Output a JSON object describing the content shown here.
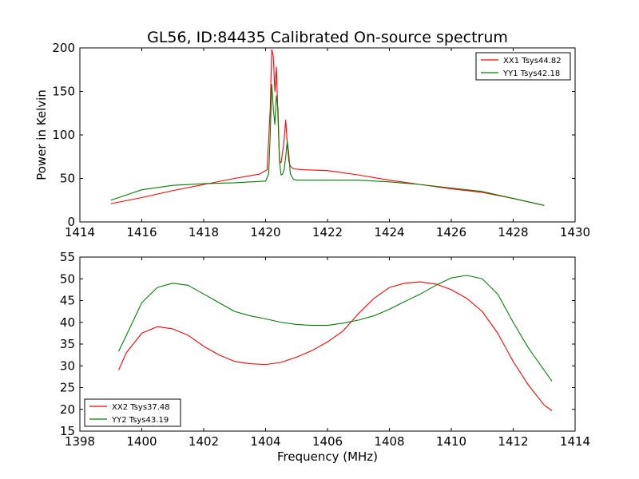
{
  "figure": {
    "title": "GL56, ID:84435 Calibrated On-source spectrum"
  },
  "chart_data": [
    {
      "type": "line",
      "title": "GL56, ID:84435 Calibrated On-source spectrum",
      "xlabel": "",
      "ylabel": "Power in Kelvin",
      "xlim": [
        1414,
        1430
      ],
      "ylim": [
        0,
        200
      ],
      "xticks": [
        1414,
        1416,
        1418,
        1420,
        1422,
        1424,
        1426,
        1428,
        1430
      ],
      "yticks": [
        0,
        50,
        100,
        150,
        200
      ],
      "grid": false,
      "legend_position": "top-right",
      "series": [
        {
          "name": "XX1 Tsys44.82",
          "color": "#ff0000",
          "x": [
            1415.0,
            1416.0,
            1417.0,
            1418.0,
            1419.0,
            1419.8,
            1420.05,
            1420.15,
            1420.2,
            1420.25,
            1420.3,
            1420.35,
            1420.4,
            1420.45,
            1420.5,
            1420.55,
            1420.6,
            1420.65,
            1420.7,
            1420.75,
            1420.8,
            1420.9,
            1421.2,
            1422.0,
            1423.0,
            1424.0,
            1425.0,
            1426.0,
            1427.0,
            1428.0,
            1429.0
          ],
          "y": [
            21,
            28,
            36,
            43,
            50,
            55,
            60,
            130,
            198,
            190,
            150,
            178,
            120,
            70,
            68,
            80,
            95,
            117,
            90,
            70,
            64,
            61,
            60,
            59,
            54,
            48,
            43,
            38,
            34,
            27,
            19
          ]
        },
        {
          "name": "YY1 Tsys42.18",
          "color": "#008000",
          "x": [
            1415.0,
            1415.5,
            1416.0,
            1417.0,
            1418.0,
            1419.0,
            1420.0,
            1420.1,
            1420.15,
            1420.2,
            1420.25,
            1420.3,
            1420.35,
            1420.4,
            1420.45,
            1420.5,
            1420.55,
            1420.6,
            1420.65,
            1420.7,
            1420.75,
            1420.8,
            1420.9,
            1421.0,
            1422.0,
            1423.0,
            1424.0,
            1425.0,
            1426.0,
            1427.0,
            1428.0,
            1429.0
          ],
          "y": [
            25,
            31,
            37,
            42,
            44,
            45,
            47,
            55,
            100,
            158,
            130,
            112,
            145,
            130,
            70,
            54,
            55,
            60,
            75,
            93,
            78,
            55,
            49,
            48,
            48,
            48,
            46,
            43,
            39,
            35,
            27,
            19
          ]
        }
      ]
    },
    {
      "type": "line",
      "title": "",
      "xlabel": "Frequency (MHz)",
      "ylabel": "",
      "xlim": [
        1398,
        1414
      ],
      "ylim": [
        15,
        55
      ],
      "xticks": [
        1398,
        1400,
        1402,
        1404,
        1406,
        1408,
        1410,
        1412,
        1414
      ],
      "yticks": [
        15,
        20,
        25,
        30,
        35,
        40,
        45,
        50,
        55
      ],
      "grid": false,
      "legend_position": "bottom-left",
      "series": [
        {
          "name": "XX2 Tsys37.48",
          "color": "#ff0000",
          "x": [
            1399.25,
            1399.5,
            1400.0,
            1400.5,
            1401.0,
            1401.5,
            1402.0,
            1402.5,
            1403.0,
            1403.5,
            1404.0,
            1404.5,
            1405.0,
            1405.5,
            1406.0,
            1406.5,
            1407.0,
            1407.5,
            1408.0,
            1408.5,
            1409.0,
            1409.5,
            1410.0,
            1410.5,
            1411.0,
            1411.5,
            1412.0,
            1412.5,
            1413.0,
            1413.25
          ],
          "y": [
            29,
            33,
            37.5,
            39,
            38.5,
            37,
            34.5,
            32.5,
            31,
            30.5,
            30.3,
            30.8,
            32,
            33.5,
            35.5,
            38,
            42,
            45.5,
            48,
            49,
            49.3,
            48.8,
            47.5,
            45.5,
            42.5,
            37.5,
            31,
            25.5,
            21,
            19.7
          ]
        },
        {
          "name": "YY2 Tsys43.19",
          "color": "#008000",
          "x": [
            1399.25,
            1399.5,
            1400.0,
            1400.5,
            1401.0,
            1401.5,
            1402.0,
            1402.5,
            1403.0,
            1403.5,
            1404.0,
            1404.5,
            1405.0,
            1405.5,
            1406.0,
            1406.5,
            1407.0,
            1407.5,
            1408.0,
            1408.5,
            1409.0,
            1409.5,
            1410.0,
            1410.5,
            1411.0,
            1411.5,
            1412.0,
            1412.5,
            1413.0,
            1413.25
          ],
          "y": [
            33.3,
            37,
            44.5,
            48,
            49,
            48.5,
            46.5,
            44.5,
            42.5,
            41.5,
            40.8,
            40,
            39.5,
            39.3,
            39.3,
            39.8,
            40.5,
            41.5,
            43,
            44.8,
            46.5,
            48.5,
            50.2,
            50.8,
            50,
            46.5,
            40,
            34,
            29,
            26.5
          ]
        }
      ]
    }
  ]
}
